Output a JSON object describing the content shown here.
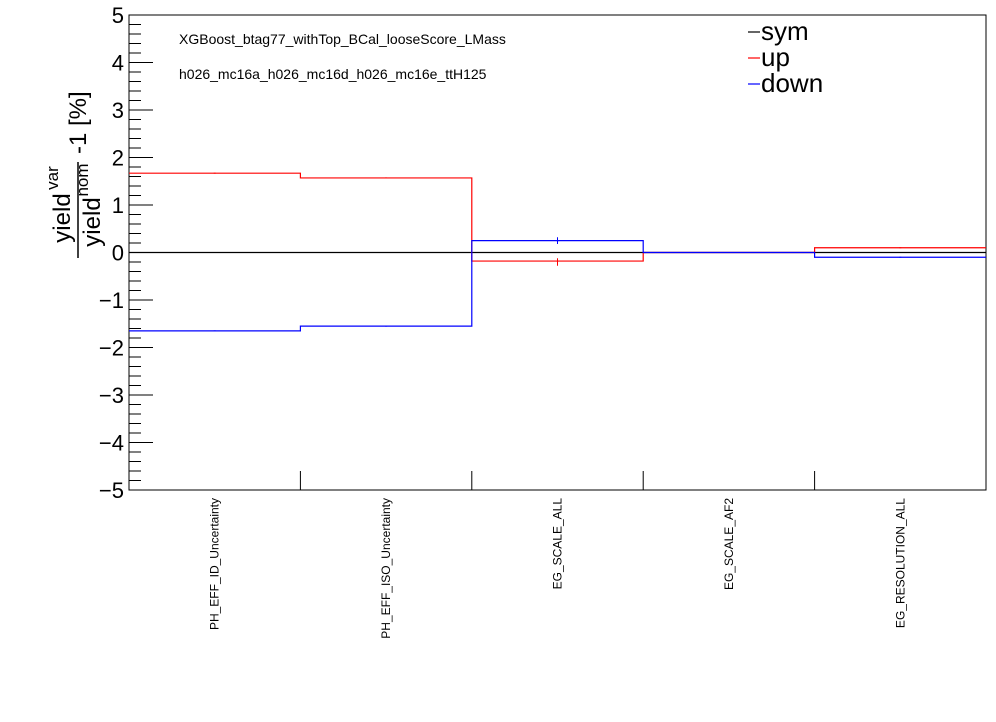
{
  "chart_data": {
    "type": "line",
    "style": "step-histogram",
    "categories": [
      "PH_EFF_ID_Uncertainty",
      "PH_EFF_ISO_Uncertainty",
      "EG_SCALE_ALL",
      "EG_SCALE_AF2",
      "EG_RESOLUTION_ALL"
    ],
    "series": [
      {
        "name": "sym",
        "color": "#000000",
        "values": [
          0,
          0,
          0,
          0,
          0
        ]
      },
      {
        "name": "up",
        "color": "#ff0000",
        "values": [
          1.67,
          1.57,
          -0.18,
          0.0,
          0.1
        ]
      },
      {
        "name": "down",
        "color": "#0000ff",
        "values": [
          -1.65,
          -1.55,
          0.25,
          0.0,
          -0.1
        ]
      }
    ],
    "ylabel": {
      "numerator": "yield",
      "numerator_sup": "var",
      "denominator": "yield",
      "denominator_sup": "nom",
      "suffix": "-1 [%]"
    },
    "ylim": [
      -5,
      5
    ],
    "yticks": [
      "5",
      "4",
      "3",
      "2",
      "1",
      "0",
      "−1",
      "−2",
      "−3",
      "−4",
      "−5"
    ],
    "annotations": [
      "XGBoost_btag77_withTop_BCal_looseScore_LMass",
      "h026_mc16a_h026_mc16d_h026_mc16e_ttH125"
    ],
    "legend": {
      "placement": "top-right",
      "entries": [
        "sym",
        "up",
        "down"
      ]
    },
    "reference_line": {
      "y": 0,
      "style": "dashed"
    },
    "grid": false
  }
}
